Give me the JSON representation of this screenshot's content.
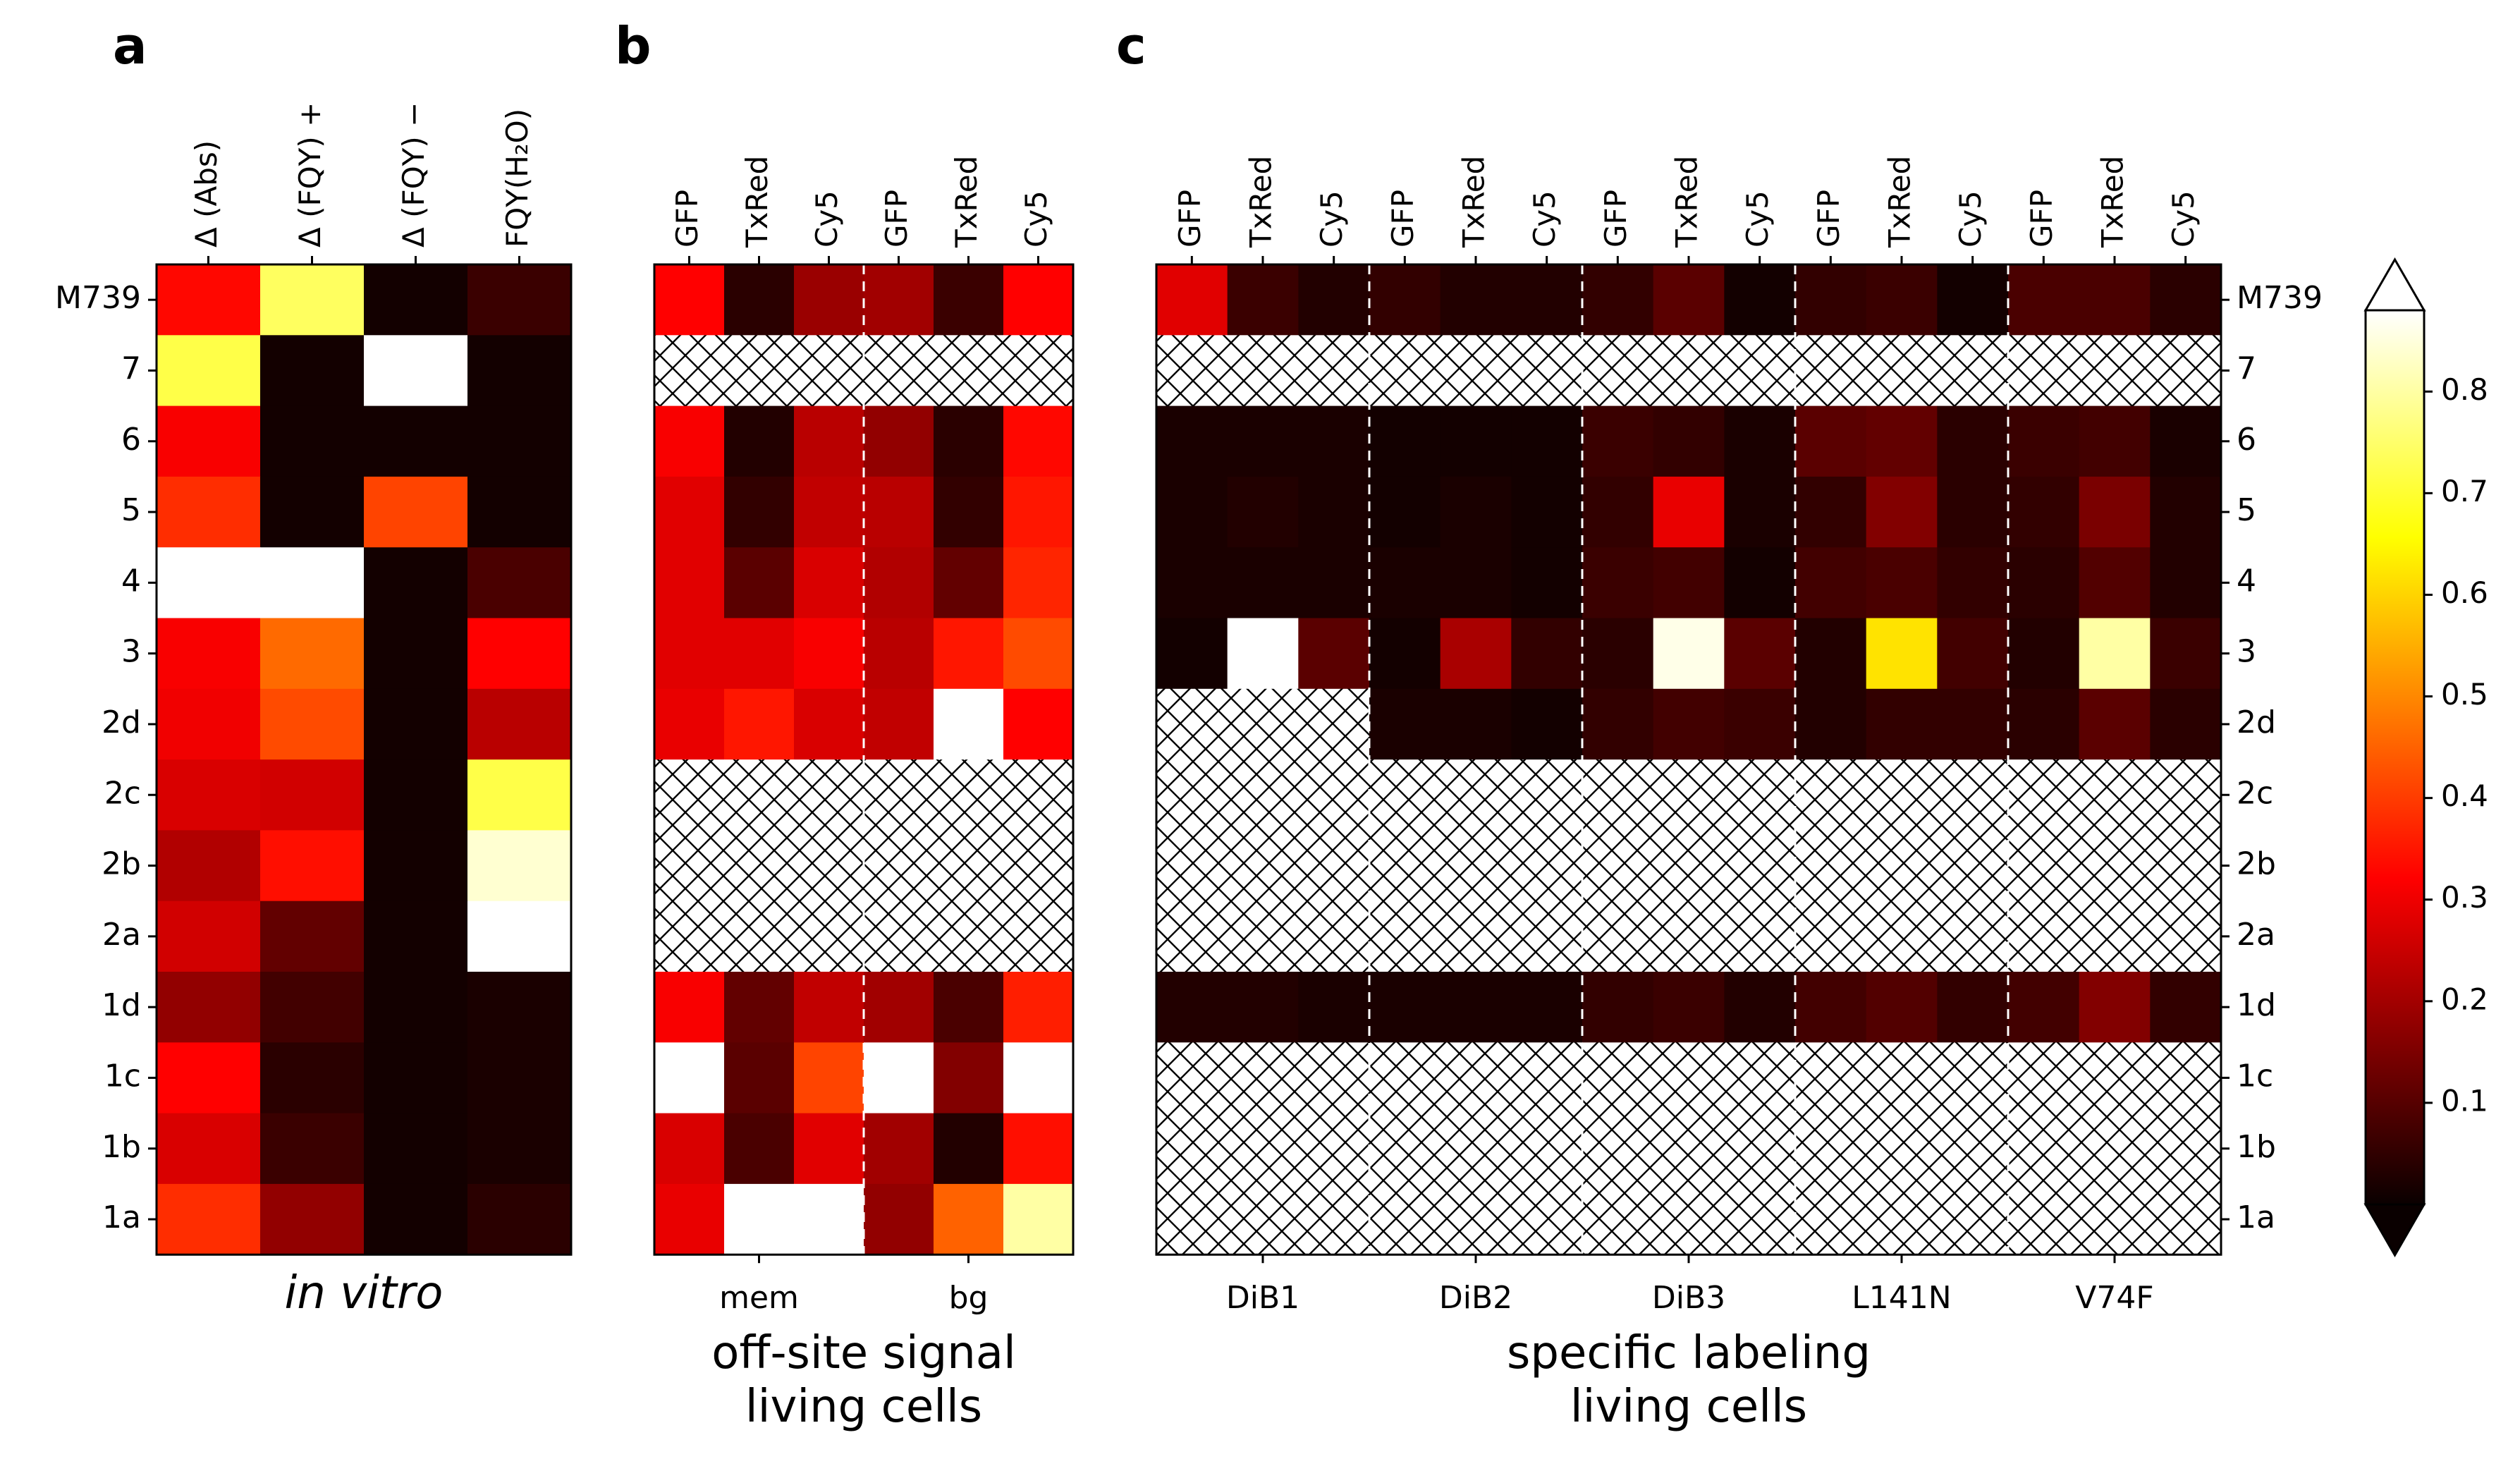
{
  "chart_data": {
    "type": "heatmap",
    "colormap": "hot",
    "rows": [
      "M739",
      "7",
      "6",
      "5",
      "4",
      "3",
      "2d",
      "2c",
      "2b",
      "2a",
      "1d",
      "1c",
      "1b",
      "1a"
    ],
    "colorbar": {
      "ticks": [
        0.1,
        0.2,
        0.3,
        0.4,
        0.5,
        0.6,
        0.7,
        0.8
      ],
      "tick_labels": [
        "0.1",
        "0.2",
        "0.3",
        "0.4",
        "0.5",
        "0.6",
        "0.7",
        "0.8"
      ],
      "range": [
        0.0,
        0.88
      ],
      "extend": "both"
    },
    "panels": [
      {
        "letter": "a",
        "caption": [
          "in vitro"
        ],
        "columns": [
          "Δ (Abs)",
          "Δ (FQY) +",
          "Δ (FQY) −",
          "FQY(H₂O)"
        ],
        "groups": [],
        "values": [
          [
            0.33,
            0.74,
            0.01,
            0.06
          ],
          [
            0.72,
            0.01,
            0.88,
            0.01
          ],
          [
            0.3,
            0.01,
            0.01,
            0.01
          ],
          [
            0.38,
            0.01,
            0.41,
            0.01
          ],
          [
            0.88,
            0.88,
            0.01,
            0.08
          ],
          [
            0.3,
            0.46,
            0.01,
            0.32
          ],
          [
            0.29,
            0.42,
            0.01,
            0.22
          ],
          [
            0.26,
            0.25,
            0.01,
            0.72
          ],
          [
            0.21,
            0.34,
            0.01,
            0.84
          ],
          [
            0.25,
            0.11,
            0.01,
            0.88
          ],
          [
            0.17,
            0.07,
            0.01,
            0.02
          ],
          [
            0.32,
            0.04,
            0.01,
            0.02
          ],
          [
            0.26,
            0.06,
            0.01,
            0.02
          ],
          [
            0.38,
            0.17,
            0.01,
            0.04
          ]
        ]
      },
      {
        "letter": "b",
        "caption": [
          "off-site signal",
          "living cells"
        ],
        "columns": [
          "GFP",
          "TxRed",
          "Cy5",
          "GFP",
          "TxRed",
          "Cy5"
        ],
        "groups": [
          "mem",
          "bg"
        ],
        "values": [
          [
            0.32,
            0.04,
            0.18,
            0.19,
            0.06,
            0.32
          ],
          [
            null,
            null,
            null,
            null,
            null,
            null
          ],
          [
            0.3,
            0.03,
            0.22,
            0.17,
            0.04,
            0.33
          ],
          [
            0.27,
            0.05,
            0.23,
            0.22,
            0.05,
            0.35
          ],
          [
            0.27,
            0.1,
            0.26,
            0.21,
            0.11,
            0.37
          ],
          [
            0.27,
            0.27,
            0.3,
            0.22,
            0.35,
            0.42
          ],
          [
            0.28,
            0.35,
            0.26,
            0.23,
            0.88,
            0.32
          ],
          [
            null,
            null,
            null,
            null,
            null,
            null
          ],
          [
            null,
            null,
            null,
            null,
            null,
            null
          ],
          [
            null,
            null,
            null,
            null,
            null,
            null
          ],
          [
            0.3,
            0.11,
            0.23,
            0.19,
            0.08,
            0.36
          ],
          [
            0.88,
            0.1,
            0.41,
            0.88,
            0.15,
            0.88
          ],
          [
            0.26,
            0.08,
            0.27,
            0.19,
            0.03,
            0.34
          ],
          [
            0.28,
            0.88,
            0.88,
            0.17,
            0.45,
            0.8
          ]
        ]
      },
      {
        "letter": "c",
        "caption": [
          "specific labeling",
          "living cells"
        ],
        "columns": [
          "GFP",
          "TxRed",
          "Cy5",
          "GFP",
          "TxRed",
          "Cy5",
          "GFP",
          "TxRed",
          "Cy5",
          "GFP",
          "TxRed",
          "Cy5",
          "GFP",
          "TxRed",
          "Cy5"
        ],
        "groups": [
          "DiB1",
          "DiB2",
          "DiB3",
          "L141N",
          "V74F"
        ],
        "values": [
          [
            0.27,
            0.06,
            0.03,
            0.05,
            0.03,
            0.03,
            0.05,
            0.1,
            0.01,
            0.05,
            0.06,
            0.01,
            0.08,
            0.08,
            0.04
          ],
          [
            null,
            null,
            null,
            null,
            null,
            null,
            null,
            null,
            null,
            null,
            null,
            null,
            null,
            null,
            null
          ],
          [
            0.02,
            0.02,
            0.02,
            0.01,
            0.01,
            0.01,
            0.06,
            0.05,
            0.02,
            0.1,
            0.11,
            0.04,
            0.06,
            0.07,
            0.02
          ],
          [
            0.02,
            0.03,
            0.02,
            0.01,
            0.02,
            0.01,
            0.05,
            0.28,
            0.02,
            0.05,
            0.15,
            0.04,
            0.05,
            0.14,
            0.03
          ],
          [
            0.02,
            0.02,
            0.02,
            0.02,
            0.02,
            0.01,
            0.06,
            0.07,
            0.01,
            0.07,
            0.08,
            0.05,
            0.04,
            0.09,
            0.03
          ],
          [
            0.01,
            0.88,
            0.1,
            0.01,
            0.2,
            0.05,
            0.04,
            0.86,
            0.1,
            0.03,
            0.62,
            0.07,
            0.03,
            0.8,
            0.06
          ],
          [
            null,
            null,
            null,
            0.02,
            0.02,
            0.01,
            0.05,
            0.07,
            0.06,
            0.03,
            0.05,
            0.05,
            0.04,
            0.1,
            0.04
          ],
          [
            null,
            null,
            null,
            null,
            null,
            null,
            null,
            null,
            null,
            null,
            null,
            null,
            null,
            null,
            null
          ],
          [
            null,
            null,
            null,
            null,
            null,
            null,
            null,
            null,
            null,
            null,
            null,
            null,
            null,
            null,
            null
          ],
          [
            null,
            null,
            null,
            null,
            null,
            null,
            null,
            null,
            null,
            null,
            null,
            null,
            null,
            null,
            null
          ],
          [
            0.03,
            0.03,
            0.02,
            0.02,
            0.02,
            0.02,
            0.05,
            0.06,
            0.03,
            0.07,
            0.09,
            0.05,
            0.07,
            0.15,
            0.05
          ],
          [
            null,
            null,
            null,
            null,
            null,
            null,
            null,
            null,
            null,
            null,
            null,
            null,
            null,
            null,
            null
          ],
          [
            null,
            null,
            null,
            null,
            null,
            null,
            null,
            null,
            null,
            null,
            null,
            null,
            null,
            null,
            null
          ],
          [
            null,
            null,
            null,
            null,
            null,
            null,
            null,
            null,
            null,
            null,
            null,
            null,
            null,
            null,
            null
          ]
        ]
      }
    ]
  }
}
